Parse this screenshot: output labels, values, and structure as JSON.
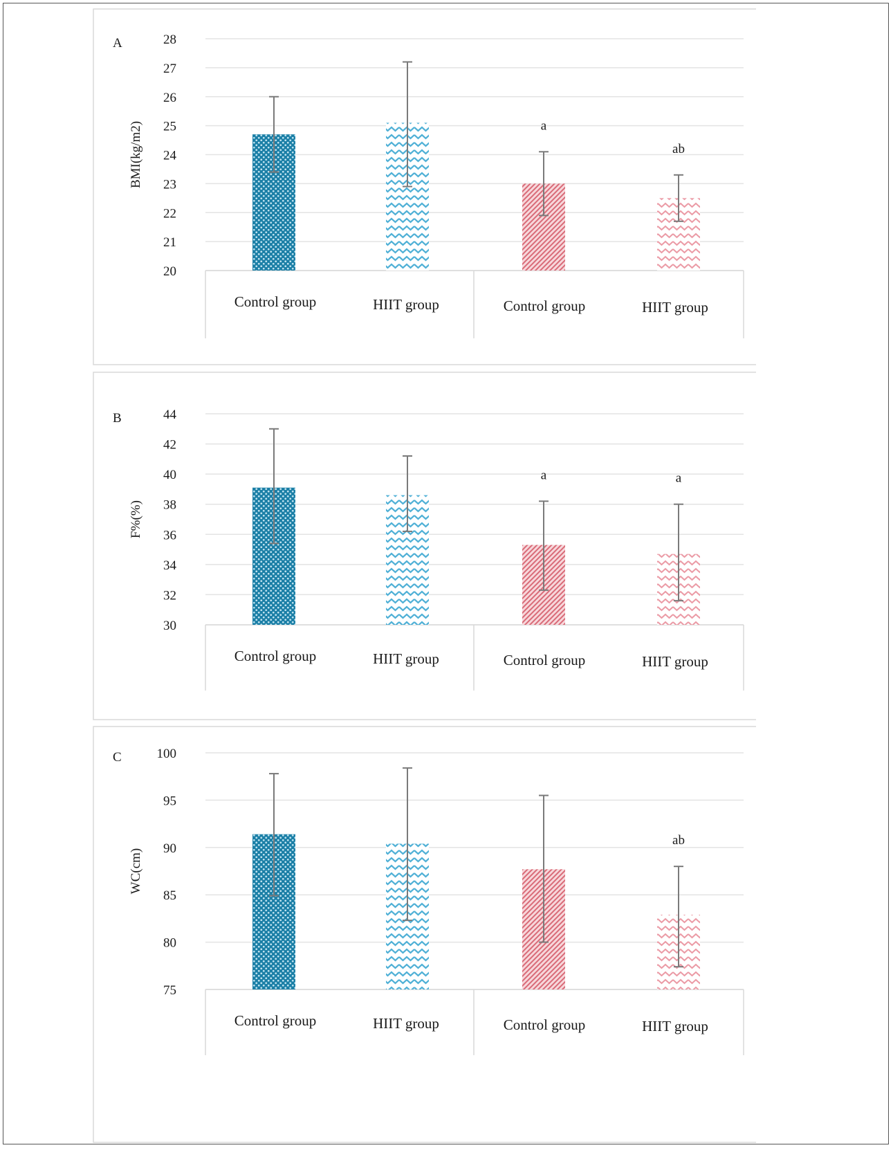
{
  "chart_data": [
    {
      "type": "bar",
      "panel_label": "A",
      "ylabel": "BMI(kg/m2)",
      "ylim": [
        20,
        28
      ],
      "yticks": [
        20,
        21,
        22,
        23,
        24,
        25,
        26,
        27,
        28
      ],
      "categories": [
        "Control group",
        "HIIT group",
        "Control group",
        "HIIT group"
      ],
      "values": [
        24.7,
        25.1,
        23.0,
        22.5
      ],
      "error": [
        [
          23.4,
          26.0
        ],
        [
          22.9,
          27.2
        ],
        [
          21.9,
          24.1
        ],
        [
          21.7,
          23.3
        ]
      ],
      "annotations": [
        "",
        "",
        "a",
        "ab"
      ],
      "grid": true
    },
    {
      "type": "bar",
      "panel_label": "B",
      "ylabel": "F%(%)",
      "ylim": [
        30,
        44
      ],
      "yticks": [
        30,
        32,
        34,
        36,
        38,
        40,
        42,
        44
      ],
      "categories": [
        "Control group",
        "HIIT group",
        "Control group",
        "HIIT group"
      ],
      "values": [
        39.1,
        38.6,
        35.3,
        34.7
      ],
      "error": [
        [
          35.4,
          43.0
        ],
        [
          36.2,
          41.2
        ],
        [
          32.3,
          38.2
        ],
        [
          31.6,
          38.0
        ]
      ],
      "annotations": [
        "",
        "",
        "a",
        "a"
      ],
      "grid": true
    },
    {
      "type": "bar",
      "panel_label": "C",
      "ylabel": "WC(cm)",
      "ylim": [
        75,
        100
      ],
      "yticks": [
        75,
        80,
        85,
        90,
        95,
        100
      ],
      "categories": [
        "Control group",
        "HIIT group",
        "Control group",
        "HIIT group"
      ],
      "values": [
        91.4,
        90.4,
        87.7,
        82.9
      ],
      "error": [
        [
          84.9,
          97.8
        ],
        [
          82.3,
          98.4
        ],
        [
          80.0,
          95.5
        ],
        [
          77.4,
          88.0
        ]
      ],
      "annotations": [
        "",
        "",
        "",
        "ab"
      ],
      "grid": true
    }
  ],
  "colors": {
    "blue_dark": "#2c97bd",
    "blue_light": "#7cc3de",
    "red_dark": "#e0848f",
    "red_light": "#f2b5bd",
    "grid": "#e3e3e3",
    "error_bar": "#7a7a7a"
  }
}
